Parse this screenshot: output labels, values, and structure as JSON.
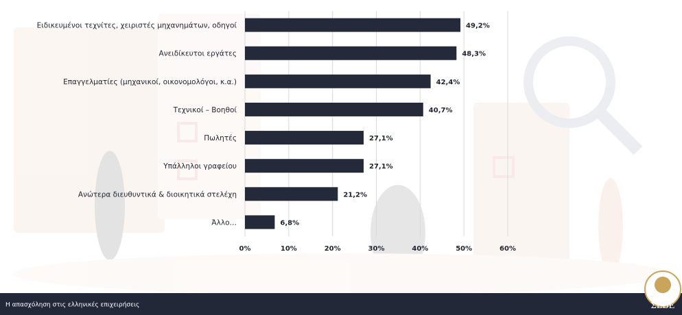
{
  "chart_data": {
    "type": "hbar",
    "categories": [
      "Ειδικευμένοι τεχνίτες, χειριστές μηχανημάτων, οδηγοί",
      "Ανειδίκευτοι εργάτες",
      "Επαγγελματίες (μηχανικοί, οικονομολόγοι, κ.α.)",
      "Τεχνικοί – Βοηθοί",
      "Πωλητές",
      "Υπάλληλοι γραφείου",
      "Ανώτερα διευθυντικά & διοικητικά στελέχη",
      "Άλλο…"
    ],
    "values": [
      49.2,
      48.3,
      42.4,
      40.7,
      27.1,
      27.1,
      21.2,
      6.8
    ],
    "value_labels": [
      "49,2%",
      "48,3%",
      "42,4%",
      "40,7%",
      "27,1%",
      "27,1%",
      "21,2%",
      "6,8%"
    ],
    "color": "#252a3a",
    "xlim": [
      0,
      60
    ],
    "xticks": [
      {
        "value": 0,
        "label": "0%"
      },
      {
        "value": 10,
        "label": "10%"
      },
      {
        "value": 20,
        "label": "20%"
      },
      {
        "value": 30,
        "label": "30%"
      },
      {
        "value": 40,
        "label": "40%"
      },
      {
        "value": 50,
        "label": "50%"
      },
      {
        "value": 60,
        "label": "60%"
      }
    ],
    "grid": true
  },
  "footer": {
    "text": "Η απασχόληση στις ελληνικές επιχειρήσεις",
    "logo": "ΣΕΒΕ"
  }
}
